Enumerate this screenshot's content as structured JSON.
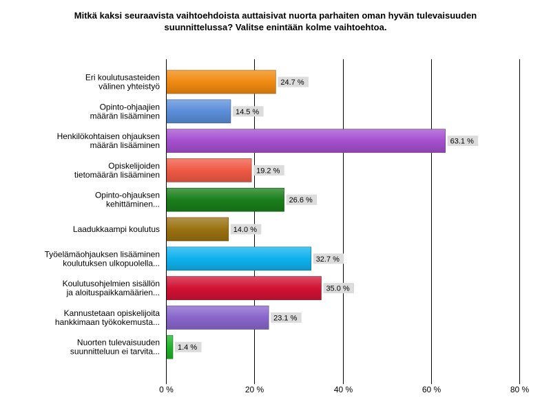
{
  "chart_data": {
    "type": "bar",
    "orientation": "horizontal",
    "title_lines": [
      "Mitkä kaksi seuraavista vaihtoehdoista auttaisivat nuorta parhaiten oman hyvän tulevaisuuden",
      "suunnittelussa? Valitse enintään kolme vaihtoehtoa."
    ],
    "categories": [
      [
        "Eri koulutusasteiden",
        "välinen yhteistyö"
      ],
      [
        "Opinto-ohjaajien",
        "määrän lisääminen"
      ],
      [
        "Henkilökohtaisen ohjauksen",
        "määrän lisääminen"
      ],
      [
        "Opiskelijoiden",
        "tietomäärän lisääminen"
      ],
      [
        "Opinto-ohjauksen",
        "kehittäminen..."
      ],
      [
        "Laadukkaampi koulutus"
      ],
      [
        "Työelämäohjauksen lisääminen",
        "koulutuksen ulkopuolella..."
      ],
      [
        "Koulutusohjelmien sisällön",
        "ja aloituspaikkamäärien..."
      ],
      [
        "Kannustetaan opiskelijoita",
        "hankkimaan työkokemusta..."
      ],
      [
        "Nuorten tulevaisuuden",
        "suunnitteluun ei tarvita..."
      ]
    ],
    "values": [
      24.7,
      14.5,
      63.1,
      19.2,
      26.6,
      14.0,
      32.7,
      35.0,
      23.1,
      1.4
    ],
    "value_labels": [
      "24.7 %",
      "14.5 %",
      "63.1 %",
      "19.2 %",
      "26.6 %",
      "14.0 %",
      "32.7 %",
      "35.0 %",
      "23.1 %",
      "1.4 %"
    ],
    "colors": [
      "#f08a10",
      "#5b8ed9",
      "#a54fcf",
      "#ef5a45",
      "#1a7f1a",
      "#9a7210",
      "#0fb2ee",
      "#d11234",
      "#8866cc",
      "#22b22a"
    ],
    "xlim": [
      0,
      80
    ],
    "xticks": [
      0,
      20,
      40,
      60,
      80
    ],
    "xtick_labels": [
      "0 %",
      "20 %",
      "40 %",
      "60 %",
      "80 %"
    ],
    "grid": "vertical"
  }
}
